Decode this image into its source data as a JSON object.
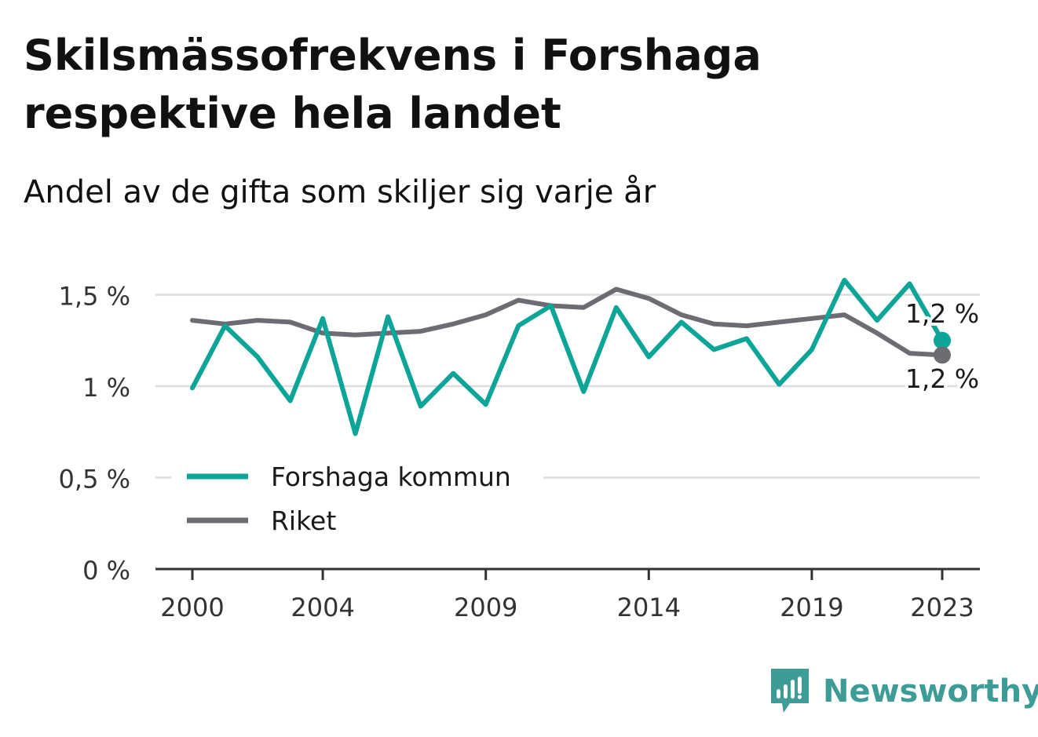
{
  "title": "Skilsmässofrekvens i Forshaga respektive hela landet",
  "subtitle": "Andel av de gifta som skiljer sig varje år",
  "brand": {
    "name": "Newsworthy"
  },
  "colors": {
    "forshaga": "#0da597",
    "riket": "#6e6b72",
    "grid": "#dcdcdc",
    "axis": "#333333",
    "brand": "#3e9c97"
  },
  "chart_data": {
    "type": "line",
    "title": "Skilsmässofrekvens i Forshaga respektive hela landet",
    "subtitle": "Andel av de gifta som skiljer sig varje år",
    "x": [
      2000,
      2001,
      2002,
      2003,
      2004,
      2005,
      2006,
      2007,
      2008,
      2009,
      2010,
      2011,
      2012,
      2013,
      2014,
      2015,
      2016,
      2017,
      2018,
      2019,
      2020,
      2021,
      2022,
      2023
    ],
    "x_ticks": [
      "2000",
      "2004",
      "2009",
      "2014",
      "2019",
      "2023"
    ],
    "y_ticks": [
      {
        "value": 0,
        "label": "0 %"
      },
      {
        "value": 0.5,
        "label": "0,5 %"
      },
      {
        "value": 1,
        "label": "1 %"
      },
      {
        "value": 1.5,
        "label": "1,5 %"
      }
    ],
    "ylim": [
      0,
      1.62
    ],
    "grid": true,
    "legend_position": "bottom-left",
    "series": [
      {
        "name": "Forshaga kommun",
        "color": "#0da597",
        "values": [
          0.99,
          1.33,
          1.16,
          0.92,
          1.37,
          0.74,
          1.38,
          0.89,
          1.07,
          0.9,
          1.33,
          1.44,
          0.97,
          1.43,
          1.16,
          1.35,
          1.2,
          1.26,
          1.01,
          1.2,
          1.58,
          1.36,
          1.56,
          1.25
        ],
        "end_label": "1,2 %"
      },
      {
        "name": "Riket",
        "color": "#6e6b72",
        "values": [
          1.36,
          1.34,
          1.36,
          1.35,
          1.29,
          1.28,
          1.29,
          1.3,
          1.34,
          1.39,
          1.47,
          1.44,
          1.43,
          1.53,
          1.48,
          1.39,
          1.34,
          1.33,
          1.35,
          1.37,
          1.39,
          1.29,
          1.18,
          1.17
        ],
        "end_label": "1,2 %"
      }
    ]
  }
}
